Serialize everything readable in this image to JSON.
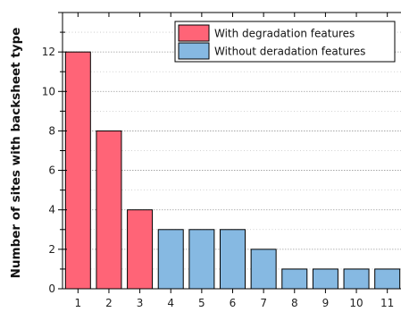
{
  "chart_data": {
    "type": "bar",
    "categories": [
      "1",
      "2",
      "3",
      "4",
      "5",
      "6",
      "7",
      "8",
      "9",
      "10",
      "11"
    ],
    "values": [
      12,
      8,
      4,
      3,
      3,
      3,
      2,
      1,
      1,
      1,
      1
    ],
    "bar_groups": [
      0,
      0,
      0,
      1,
      1,
      1,
      1,
      1,
      1,
      1,
      1
    ],
    "series": [
      {
        "name": "With degradation features",
        "color": "#ff6477"
      },
      {
        "name": "Without deradation features",
        "color": "#86b9e2"
      }
    ],
    "title": "",
    "xlabel": "",
    "ylabel": "Number of sites with backsheet type",
    "ylim": [
      0,
      14
    ],
    "yticks": [
      0,
      2,
      4,
      6,
      8,
      10,
      12
    ],
    "grid": "horizontal dotted",
    "legend_position": "top-right"
  }
}
